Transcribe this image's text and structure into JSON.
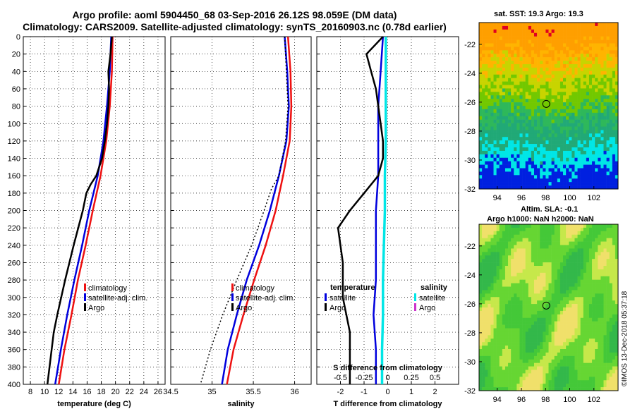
{
  "header": {
    "title_line1": "Argo profile: aoml 5904450_68 03-Sep-2016 26.12S 98.059E (DM data)",
    "title_line2": "Climatology: CARS2009. Satellite-adjusted climatology: synTS_20160903.nc (0.78d earlier)"
  },
  "maps": {
    "sst_title": "sat. SST: 19.3 Argo: 19.3",
    "sla_title1": "Altim. SLA: -0.1",
    "sla_title2": "Argo h1000: NaN h2000: NaN",
    "lon_ticks": [
      "94",
      "96",
      "98",
      "100",
      "102"
    ],
    "lat_ticks": [
      "-22",
      "-24",
      "-26",
      "-28",
      "-30",
      "-32"
    ],
    "lon_range": [
      92.5,
      104
    ],
    "lat_range": [
      -32,
      -20.5
    ],
    "argo_position": {
      "lon": 98.059,
      "lat": -26.12
    }
  },
  "credit": "©IMOS 13-Dec-2018 05:37:18",
  "colors": {
    "climatology": "#ee1111",
    "satellite": "#0000dd",
    "argo": "#000000",
    "sal_satellite": "#00e6e6",
    "sal_argo": "#cc33cc"
  },
  "chart_data": [
    {
      "type": "line",
      "id": "temperature",
      "xlabel": "temperature (deg C)",
      "ylim": [
        400,
        0
      ],
      "xlim": [
        7,
        27
      ],
      "x_ticks": [
        8,
        10,
        12,
        14,
        16,
        18,
        20,
        22,
        24,
        26
      ],
      "y_ticks": [
        0,
        20,
        40,
        60,
        80,
        100,
        120,
        140,
        160,
        180,
        200,
        220,
        240,
        260,
        280,
        300,
        320,
        340,
        360,
        380,
        400
      ],
      "legend": [
        "climatology",
        "satellite-adj. clim.",
        "Argo"
      ],
      "series": [
        {
          "name": "climatology",
          "depth": [
            0,
            40,
            80,
            120,
            160,
            200,
            240,
            280,
            320,
            360,
            400
          ],
          "values": [
            19.6,
            19.5,
            19.2,
            18.7,
            17.9,
            16.8,
            15.8,
            14.7,
            13.8,
            12.8,
            12.0
          ]
        },
        {
          "name": "satellite-adj. clim.",
          "depth": [
            0,
            40,
            80,
            120,
            160,
            200,
            240,
            280,
            320,
            360,
            400
          ],
          "values": [
            19.4,
            19.2,
            18.8,
            18.3,
            17.5,
            16.3,
            15.3,
            14.2,
            13.2,
            12.3,
            11.5
          ]
        },
        {
          "name": "Argo",
          "depth": [
            0,
            20,
            40,
            60,
            80,
            100,
            120,
            140,
            160,
            170,
            180,
            200,
            240,
            280,
            320,
            340,
            360,
            380,
            400
          ],
          "values": [
            19.5,
            19.3,
            19.0,
            19.1,
            19.0,
            18.8,
            18.5,
            18.1,
            17.3,
            16.5,
            15.9,
            15.4,
            14.1,
            12.9,
            11.8,
            11.3,
            11.0,
            10.7,
            10.4
          ]
        }
      ]
    },
    {
      "type": "line",
      "id": "salinity",
      "xlabel": "salinity",
      "ylim": [
        400,
        0
      ],
      "xlim": [
        34.5,
        36.2
      ],
      "x_ticks": [
        34.5,
        35,
        35.5,
        36
      ],
      "x_tick_labels": [
        "34.5",
        "35",
        "35.5",
        "36"
      ],
      "legend": [
        "climatology",
        "satellite-adj. clim.",
        "Argo"
      ],
      "series": [
        {
          "name": "climatology",
          "depth": [
            0,
            40,
            80,
            120,
            160,
            200,
            240,
            280,
            320,
            360,
            400
          ],
          "values": [
            35.92,
            35.95,
            35.96,
            35.94,
            35.86,
            35.77,
            35.65,
            35.51,
            35.38,
            35.26,
            35.18
          ]
        },
        {
          "name": "satellite-adj. clim.",
          "depth": [
            0,
            40,
            80,
            120,
            160,
            200,
            240,
            280,
            320,
            360,
            400
          ],
          "values": [
            35.88,
            35.91,
            35.93,
            35.9,
            35.81,
            35.7,
            35.57,
            35.42,
            35.3,
            35.19,
            35.12
          ]
        },
        {
          "name": "Argo",
          "depth": [
            0,
            40,
            80,
            120,
            160,
            175,
            200,
            240,
            280,
            320,
            360,
            400
          ],
          "values": [
            35.88,
            35.9,
            35.92,
            35.89,
            35.81,
            35.72,
            35.63,
            35.48,
            35.3,
            35.13,
            34.98,
            34.86
          ]
        }
      ]
    },
    {
      "type": "line",
      "id": "difference",
      "xlabel": "T difference from climatology",
      "xlabel_top": "S difference from climatology",
      "ylim": [
        400,
        0
      ],
      "xlim": [
        -3,
        3
      ],
      "x_ticks": [
        -2,
        -1,
        0,
        1,
        2
      ],
      "s_ticks": [
        -0.5,
        -0.25,
        0,
        0.25,
        0.5
      ],
      "s_tick_labels": [
        "-0.5",
        "-0.25",
        "0",
        "0.25",
        "0.5"
      ],
      "legend_temperature": {
        "heading": "temperature",
        "items": [
          "satellite",
          "Argo"
        ]
      },
      "legend_salinity": {
        "heading": "salinity",
        "items": [
          "satellite",
          "Argo"
        ]
      },
      "series": [
        {
          "name": "temperature satellite",
          "depth": [
            0,
            40,
            80,
            120,
            160,
            200,
            240,
            280,
            320,
            360,
            400
          ],
          "values": [
            -0.2,
            -0.3,
            -0.4,
            -0.4,
            -0.4,
            -0.5,
            -0.5,
            -0.5,
            -0.6,
            -0.5,
            -0.5
          ]
        },
        {
          "name": "temperature Argo",
          "depth": [
            0,
            20,
            40,
            60,
            80,
            100,
            120,
            140,
            160,
            180,
            200,
            220,
            260,
            300,
            340,
            400
          ],
          "values": [
            -0.2,
            -0.9,
            -0.7,
            -0.5,
            -0.4,
            -0.3,
            -0.2,
            -0.2,
            -0.4,
            -1.0,
            -1.6,
            -2.1,
            -1.9,
            -1.9,
            -1.6,
            -1.6
          ]
        },
        {
          "name": "salinity satellite",
          "depth": [
            0,
            40,
            80,
            120,
            160,
            200,
            240,
            280,
            320,
            360,
            400
          ],
          "values": [
            -0.02,
            -0.02,
            -0.02,
            -0.02,
            -0.03,
            -0.03,
            -0.04,
            -0.05,
            -0.05,
            -0.06,
            -0.06
          ]
        }
      ]
    }
  ]
}
